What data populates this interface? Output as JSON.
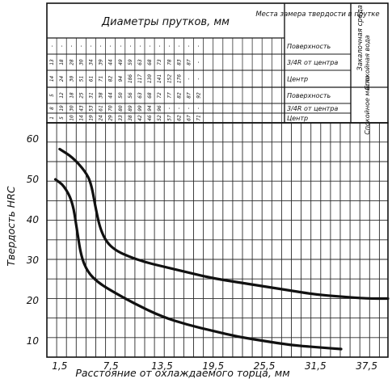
{
  "chart_data": {
    "type": "line",
    "title": "",
    "xlabel": "Расстояние от охлаждаемого торца, мм",
    "ylabel": "Твердость HRC",
    "x_ticks": [
      "1,5",
      "7,5",
      "13,5",
      "19,5",
      "25,5",
      "31,5",
      "37,5"
    ],
    "y_ticks": [
      "10",
      "20",
      "30",
      "40",
      "50",
      "60"
    ],
    "xlim": [
      0,
      40
    ],
    "ylim": [
      6,
      64
    ],
    "grid": true,
    "series": [
      {
        "values": [
          {
            "x": 1.5,
            "y": 57.5
          },
          {
            "x": 3.0,
            "y": 55.5
          },
          {
            "x": 4.5,
            "y": 52.0
          },
          {
            "x": 5.2,
            "y": 49.0
          },
          {
            "x": 5.8,
            "y": 42.0
          },
          {
            "x": 6.3,
            "y": 37.5
          },
          {
            "x": 7.0,
            "y": 34.5
          },
          {
            "x": 8.0,
            "y": 32.5
          },
          {
            "x": 9.5,
            "y": 31.0
          },
          {
            "x": 11.5,
            "y": 29.5
          },
          {
            "x": 13.5,
            "y": 28.5
          },
          {
            "x": 16.5,
            "y": 27.0
          },
          {
            "x": 19.5,
            "y": 25.5
          },
          {
            "x": 22.5,
            "y": 24.5
          },
          {
            "x": 25.5,
            "y": 23.5
          },
          {
            "x": 28.5,
            "y": 22.5
          },
          {
            "x": 31.5,
            "y": 21.5
          },
          {
            "x": 34.5,
            "y": 21.0
          },
          {
            "x": 37.5,
            "y": 20.5
          },
          {
            "x": 40.0,
            "y": 20.5
          }
        ]
      },
      {
        "values": [
          {
            "x": 1.0,
            "y": 50.0
          },
          {
            "x": 2.0,
            "y": 48.5
          },
          {
            "x": 3.0,
            "y": 44.5
          },
          {
            "x": 3.5,
            "y": 38.0
          },
          {
            "x": 4.0,
            "y": 31.0
          },
          {
            "x": 4.8,
            "y": 27.0
          },
          {
            "x": 6.0,
            "y": 24.5
          },
          {
            "x": 7.5,
            "y": 22.5
          },
          {
            "x": 10.5,
            "y": 19.0
          },
          {
            "x": 13.5,
            "y": 16.0
          },
          {
            "x": 16.5,
            "y": 14.0
          },
          {
            "x": 19.5,
            "y": 12.5
          },
          {
            "x": 22.5,
            "y": 11.0
          },
          {
            "x": 25.5,
            "y": 10.0
          },
          {
            "x": 28.5,
            "y": 9.0
          },
          {
            "x": 31.5,
            "y": 8.5
          },
          {
            "x": 34.5,
            "y": 8.0
          }
        ]
      }
    ]
  },
  "header_table": {
    "diam_header": "Диаметры прутков, мм",
    "place_header": "Места замера твердости в прутке",
    "medium_header": "Закалочная среда",
    "rows": [
      {
        "cells": [
          "-",
          "-",
          "-",
          "-",
          "-",
          "-",
          "-",
          "-",
          "-",
          "-",
          "-",
          "-",
          "-",
          "-",
          "-",
          "-"
        ],
        "place": "Поверхность"
      },
      {
        "cells": [
          "13",
          "18",
          "28",
          "30",
          "34",
          "39",
          "44",
          "49",
          "59",
          "63",
          "68",
          "73",
          "78",
          "83",
          "87",
          "-"
        ],
        "place": "3/4R от центра"
      },
      {
        "cells": [
          "14",
          "24",
          "30",
          "51",
          "61",
          "71",
          "82",
          "94",
          "106",
          "117",
          "130",
          "141",
          "152",
          "176",
          "-",
          "-"
        ],
        "place": "Центр"
      },
      {
        "cells": [
          "5",
          "12",
          "18",
          "25",
          "31",
          "38",
          "44",
          "50",
          "56",
          "63",
          "68",
          "72",
          "77",
          "82",
          "87",
          "92"
        ],
        "place": "Поверхность"
      },
      {
        "cells": [
          "8",
          "19",
          "30",
          "43",
          "53",
          "61",
          "70",
          "80",
          "89",
          "99",
          "94",
          "96",
          "-",
          "-",
          "-",
          "-"
        ],
        "place": "3/4R от центра"
      },
      {
        "cells": [
          "1",
          "5",
          "10",
          "14",
          "19",
          "24",
          "29",
          "33",
          "38",
          "42",
          "46",
          "52",
          "57",
          "62",
          "67",
          "71"
        ],
        "place": "Центр"
      }
    ],
    "medium_groups": [
      "Спокойная вода",
      "Спокойное масло"
    ]
  }
}
